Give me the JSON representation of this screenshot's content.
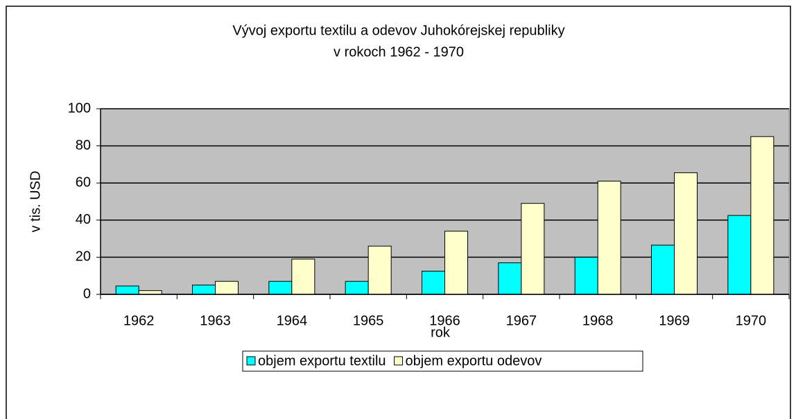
{
  "chart_data": {
    "type": "bar",
    "title": [
      "Vývoj exportu textilu a odevov Juhokórejskej republiky",
      "v rokoch 1962 - 1970"
    ],
    "x_label": "rok",
    "y_label": "v tis. USD",
    "categories": [
      "1962",
      "1963",
      "1964",
      "1965",
      "1966",
      "1967",
      "1968",
      "1969",
      "1970"
    ],
    "series": [
      {
        "name": "objem exportu textilu",
        "color": "#00ffff",
        "values": [
          4.5,
          5,
          7,
          7,
          12.5,
          17,
          20,
          26.5,
          42.5
        ]
      },
      {
        "name": "objem exportu odevov",
        "color": "#ffffcc",
        "values": [
          2,
          7,
          19,
          26,
          34,
          49,
          61,
          65.5,
          85
        ]
      }
    ],
    "ylim": [
      0,
      100
    ],
    "yticks": [
      0,
      20,
      40,
      60,
      80,
      100
    ],
    "grid": true,
    "legend": "bottom",
    "plot_background": "#c0c0c0"
  }
}
